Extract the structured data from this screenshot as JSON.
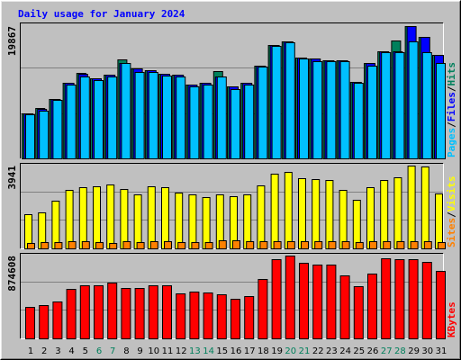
{
  "chart_data": {
    "type": "bar",
    "title": "Daily usage for January 2024",
    "categories": [
      "1",
      "2",
      "3",
      "4",
      "5",
      "6",
      "7",
      "8",
      "9",
      "10",
      "11",
      "12",
      "13",
      "14",
      "15",
      "16",
      "17",
      "18",
      "19",
      "20",
      "21",
      "22",
      "23",
      "24",
      "25",
      "26",
      "27",
      "28",
      "29",
      "30",
      "31"
    ],
    "category_color": "#000000",
    "weekend": [
      5,
      6,
      12,
      13,
      19,
      20,
      26,
      27
    ],
    "weekend_color": "#00805c",
    "separator": "/",
    "panels": [
      {
        "ylim": [
          0,
          20408
        ],
        "yticks": [
          19867
        ],
        "series": [
          {
            "name": "Hits",
            "color": "#00805c",
            "values": [
              6758,
              7568,
              8920,
              11353,
              12839,
              12028,
              12569,
              14867,
              13515,
              13245,
              12704,
              12569,
              11082,
              11353,
              13110,
              10812,
              11353,
              13920,
              17029,
              17570,
              15137,
              15002,
              14731,
              14731,
              11488,
              14326,
              16083,
              17705,
              19867,
              18245,
              15542
            ]
          },
          {
            "name": "Files",
            "color": "#0000ff",
            "values": [
              6758,
              7433,
              8920,
              11353,
              12704,
              12028,
              12569,
              14326,
              13515,
              13245,
              12704,
              12569,
              11082,
              11353,
              12299,
              10812,
              11353,
              13920,
              17029,
              17570,
              15137,
              15002,
              14731,
              14731,
              11488,
              14326,
              16083,
              16083,
              19867,
              18245,
              15542
            ]
          },
          {
            "name": "Pages",
            "color": "#00c0ff",
            "values": [
              6622,
              7163,
              8785,
              11082,
              12299,
              11758,
              12299,
              14326,
              12974,
              12974,
              12434,
              12299,
              10812,
              11082,
              12299,
              10407,
              11082,
              13785,
              16894,
              17434,
              15002,
              14596,
              14596,
              14596,
              11353,
              13920,
              15948,
              15948,
              17570,
              15948,
              14326
            ]
          }
        ]
      },
      {
        "ylim": [
          0,
          4070
        ],
        "yticks": [
          3941
        ],
        "series": [
          {
            "name": "Visits",
            "color": "#ffff00",
            "values": [
              1628,
              1714,
              2271,
              2785,
              2913,
              2956,
              3042,
              2827,
              2570,
              2956,
              2913,
              2656,
              2570,
              2442,
              2570,
              2485,
              2570,
              2999,
              3556,
              3641,
              3342,
              3299,
              3256,
              2785,
              2313,
              2913,
              3256,
              3384,
              3941,
              3898,
              2613
            ]
          },
          {
            "name": "Sites",
            "color": "#ff8000",
            "values": [
              257,
              300,
              300,
              343,
              343,
              300,
              257,
              343,
              300,
              343,
              343,
              300,
              300,
              300,
              386,
              386,
              343,
              343,
              343,
              343,
              343,
              343,
              343,
              343,
              300,
              343,
              343,
              343,
              343,
              343,
              300
            ]
          }
        ]
      },
      {
        "ylim": [
          0,
          903165
        ],
        "yticks": [
          874608
        ],
        "series": [
          {
            "name": "KBytes",
            "color": "#ff0000",
            "values": [
              332745,
              351759,
              389787,
              522885,
              560913,
              560913,
              589434,
              532392,
              532392,
              560913,
              560913,
              475350,
              494364,
              484857,
              465843,
              418308,
              446829,
              627462,
              836616,
              874608,
              798588,
              779574,
              779574,
              665490,
              551406,
              684504,
              846123,
              836616,
              836616,
              808095,
              713025
            ]
          }
        ]
      }
    ]
  }
}
